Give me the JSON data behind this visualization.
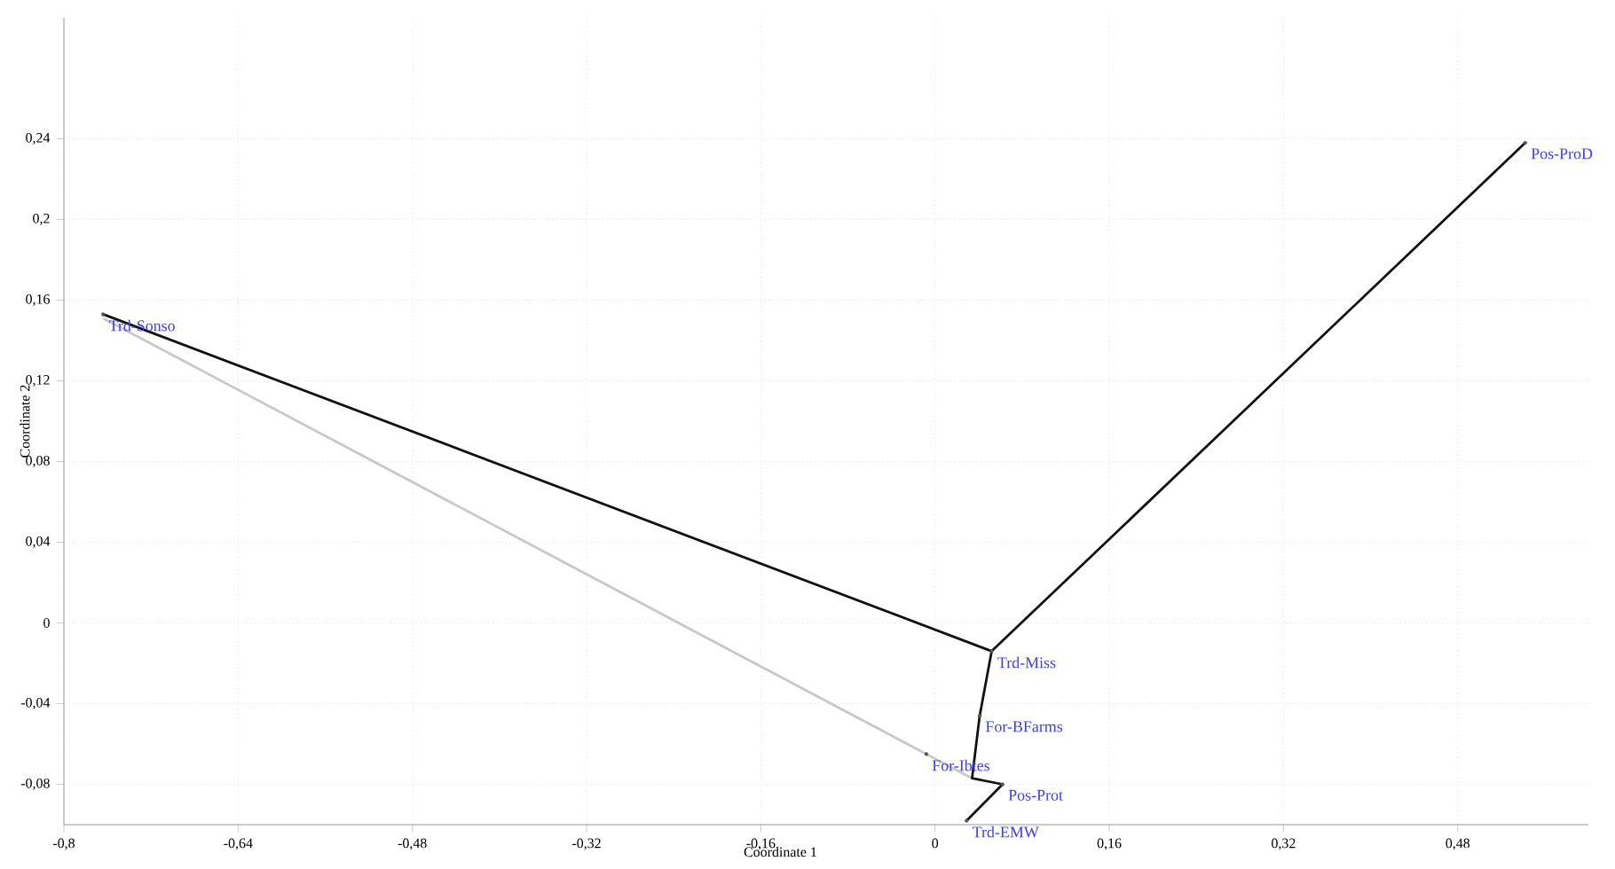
{
  "chart_data": {
    "type": "scatter",
    "xlabel": "Coordinate 1",
    "ylabel": "Coordinate 2",
    "xlim": [
      -0.8,
      0.6
    ],
    "ylim": [
      -0.1,
      0.3
    ],
    "xticks": [
      {
        "value": -0.8,
        "label": "-0,8"
      },
      {
        "value": -0.64,
        "label": "-0,64"
      },
      {
        "value": -0.48,
        "label": "-0,48"
      },
      {
        "value": -0.32,
        "label": "-0,32"
      },
      {
        "value": -0.16,
        "label": "-0,16"
      },
      0,
      {
        "value": 0.16,
        "label": "0,16"
      },
      {
        "value": 0.32,
        "label": "0,32"
      },
      {
        "value": 0.48,
        "label": "0,48"
      }
    ],
    "yticks": [
      {
        "value": -0.08,
        "label": "-0,08"
      },
      {
        "value": -0.04,
        "label": "-0,04"
      },
      0,
      {
        "value": 0.04,
        "label": "0,04"
      },
      {
        "value": 0.08,
        "label": "0,08"
      },
      {
        "value": 0.12,
        "label": "0,12"
      },
      {
        "value": 0.16,
        "label": "0,16"
      },
      {
        "value": 0.2,
        "label": "0,2"
      },
      {
        "value": 0.24,
        "label": "0,24"
      }
    ],
    "grid": true,
    "series": [
      {
        "type": "line",
        "color": "#c8c8c8",
        "x": [
          -0.764,
          -0.008,
          0.034
        ],
        "values": [
          0.151,
          -0.065,
          -0.077
        ]
      },
      {
        "type": "line",
        "color": "#111111",
        "x": [
          -0.764,
          0.052,
          0.542
        ],
        "values": [
          0.153,
          -0.014,
          0.238
        ]
      },
      {
        "type": "line",
        "color": "#111111",
        "x": [
          0.052,
          0.041,
          0.034,
          0.062,
          0.029
        ],
        "values": [
          -0.014,
          -0.046,
          -0.077,
          -0.08,
          -0.098
        ]
      },
      {
        "color": "#555555",
        "marker": "circle",
        "x": [
          -0.764,
          0.542,
          0.052,
          0.041,
          -0.008,
          0.062,
          0.029
        ],
        "values": [
          0.153,
          0.238,
          -0.014,
          -0.046,
          -0.065,
          -0.08,
          -0.098
        ]
      }
    ],
    "annotations": [
      {
        "text": "Trd-Sonso",
        "x": -0.764,
        "y": 0.153
      },
      {
        "text": "Pos-ProD",
        "x": 0.542,
        "y": 0.238
      },
      {
        "text": "Trd-Miss",
        "x": 0.052,
        "y": -0.014
      },
      {
        "text": "For-BFarms",
        "x": 0.041,
        "y": -0.046
      },
      {
        "text": "For-Ibtes",
        "x": -0.008,
        "y": -0.065
      },
      {
        "text": "Pos-Prot",
        "x": 0.062,
        "y": -0.08
      },
      {
        "text": "Trd-EMW",
        "x": 0.029,
        "y": -0.098
      }
    ]
  }
}
